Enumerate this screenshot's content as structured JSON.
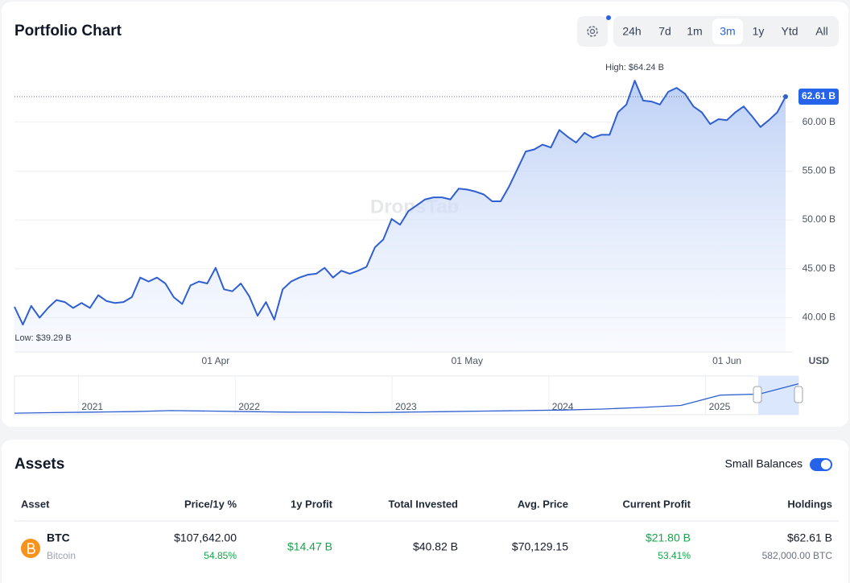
{
  "controls": {
    "ranges": [
      "24h",
      "7d",
      "1m",
      "3m",
      "1y",
      "Ytd",
      "All"
    ],
    "active": 3
  },
  "chart_data": [
    {
      "type": "line",
      "title": "Portfolio Chart",
      "color": "#2f5fd0",
      "grid": true,
      "y_unit": "USD",
      "watermark": "DropsTab",
      "categories": [
        null,
        null,
        null,
        null,
        null,
        null,
        null,
        null,
        null,
        null,
        null,
        null,
        null,
        null,
        null,
        null,
        null,
        null,
        null,
        null,
        null,
        null,
        null,
        null,
        "01 Apr",
        null,
        null,
        null,
        null,
        null,
        null,
        null,
        null,
        null,
        null,
        null,
        null,
        null,
        null,
        null,
        null,
        null,
        null,
        null,
        null,
        null,
        null,
        null,
        null,
        null,
        null,
        null,
        null,
        null,
        "01 May",
        null,
        null,
        null,
        null,
        null,
        null,
        null,
        null,
        null,
        null,
        null,
        null,
        null,
        null,
        null,
        null,
        null,
        null,
        null,
        null,
        null,
        null,
        null,
        null,
        null,
        null,
        null,
        null,
        null,
        null,
        "01 Jun",
        null,
        null,
        null,
        null,
        null,
        null,
        null
      ],
      "values": [
        41.1,
        39.29,
        41.2,
        40.0,
        41.0,
        41.8,
        41.6,
        41.0,
        41.5,
        41.0,
        42.3,
        41.7,
        41.5,
        41.6,
        42.1,
        44.1,
        43.7,
        44.1,
        43.5,
        42.1,
        41.4,
        43.3,
        43.7,
        43.5,
        45.1,
        42.9,
        42.7,
        43.5,
        42.2,
        40.2,
        41.6,
        39.8,
        42.9,
        43.7,
        44.1,
        44.4,
        44.5,
        45.1,
        44.1,
        44.8,
        44.5,
        44.8,
        45.2,
        47.2,
        48.0,
        50.1,
        49.5,
        50.9,
        51.5,
        52.1,
        52.3,
        52.3,
        52.1,
        53.2,
        53.1,
        52.9,
        52.6,
        51.9,
        51.9,
        53.4,
        55.2,
        57.0,
        57.2,
        57.7,
        57.4,
        59.2,
        58.5,
        57.9,
        58.9,
        58.4,
        58.7,
        58.7,
        61.0,
        61.8,
        64.24,
        62.2,
        62.1,
        61.8,
        63.1,
        63.5,
        62.9,
        61.6,
        61.0,
        59.8,
        60.3,
        60.2,
        61.0,
        61.6,
        60.6,
        59.5,
        60.2,
        61.0,
        62.61
      ],
      "ylim": [
        36.5,
        65.9
      ],
      "yticks": [
        {
          "value": 40,
          "label": "40.00 B"
        },
        {
          "value": 45,
          "label": "45.00 B"
        },
        {
          "value": 50,
          "label": "50.00 B"
        },
        {
          "value": 55,
          "label": "55.00 B"
        },
        {
          "value": 60,
          "label": "60.00 B"
        }
      ],
      "annotations": {
        "high": "High: $64.24 B",
        "low": "Low: $39.29 B",
        "last": "62.61 B"
      }
    },
    {
      "type": "line",
      "color": "#2f5fd0",
      "categories": [
        null,
        null,
        "2021",
        null,
        null,
        null,
        "2022",
        null,
        null,
        null,
        "2023",
        null,
        null,
        null,
        "2024",
        null,
        null,
        null,
        "2025",
        null,
        null
      ],
      "values": [
        3,
        4,
        5,
        6,
        8,
        7,
        6,
        5,
        5,
        4,
        5,
        6,
        7,
        8,
        9,
        11,
        14,
        18,
        38,
        40,
        60
      ],
      "ylim": [
        0,
        75
      ]
    }
  ],
  "assets": {
    "title": "Assets",
    "toggle_label": "Small Balances",
    "columns": [
      "Asset",
      "Price/1y %",
      "1y Profit",
      "Total Invested",
      "Avg. Price",
      "Current Profit",
      "Holdings"
    ],
    "rows": [
      {
        "symbol": "BTC",
        "name": "Bitcoin",
        "price": "$107,642.00",
        "change": "54.85%",
        "profit_1y": "$14.47 B",
        "invested": "$40.82 B",
        "avg_price": "$70,129.15",
        "current_profit": "$21.80 B",
        "current_profit_pct": "53.41%",
        "holdings": "$62.61 B",
        "holdings_amount": "582,000.00 BTC"
      }
    ]
  }
}
